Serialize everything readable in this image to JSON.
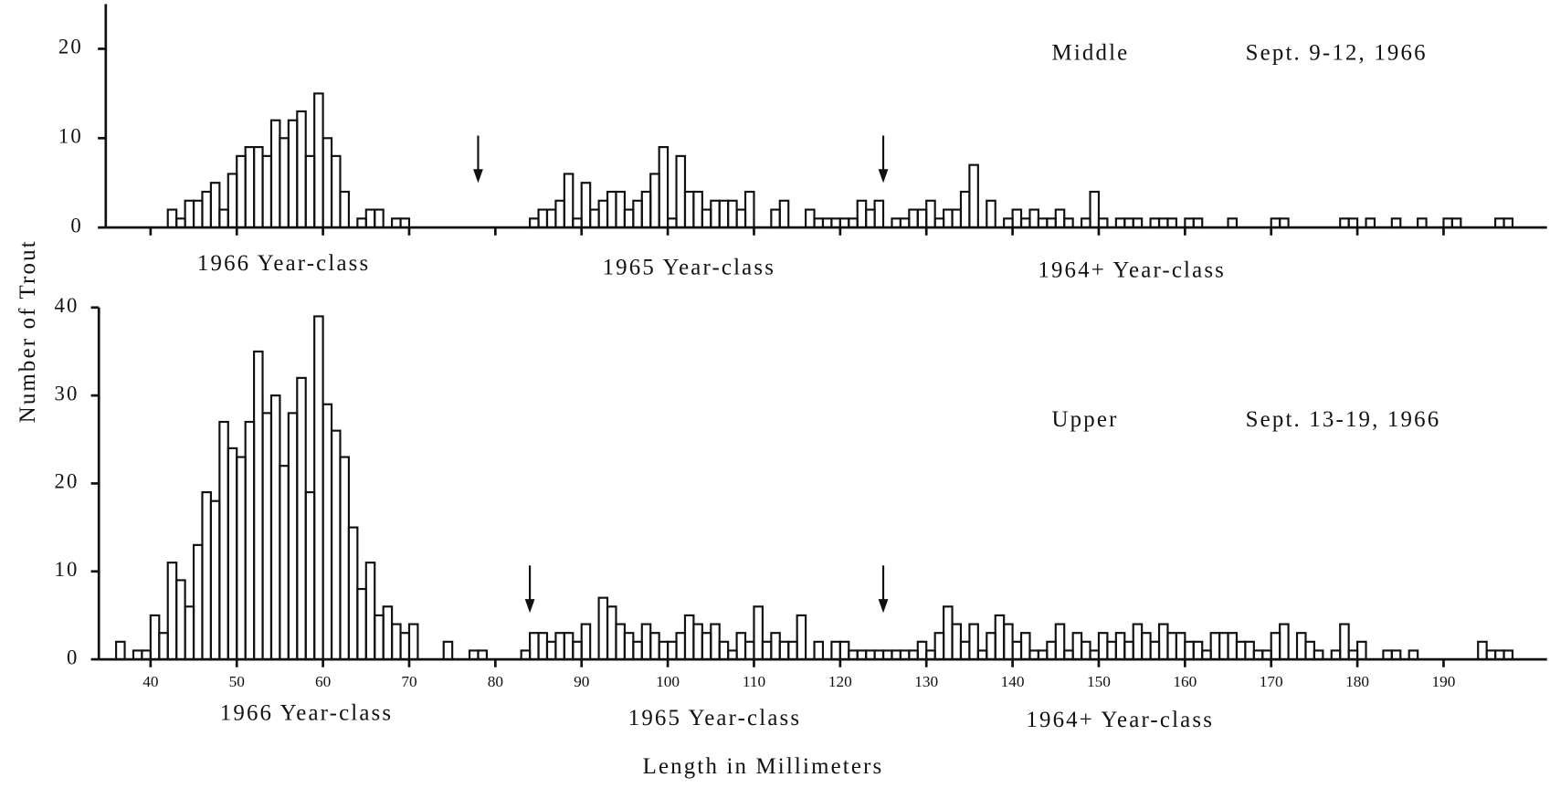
{
  "ylabel": "Number of Trout",
  "xlabel": "Length in Millimeters",
  "chart_data": [
    {
      "type": "histogram",
      "panel": "Middle",
      "date": "Sept. 9-12, 1966",
      "year_classes": [
        "1966 Year-class",
        "1965 Year-class",
        "1964+ Year-class"
      ],
      "arrows": [
        78,
        125
      ],
      "xlim": [
        34,
        202
      ],
      "ylim": [
        0,
        25
      ],
      "yticks": [
        0,
        10,
        20
      ],
      "bins": [
        35,
        36,
        37,
        38,
        39,
        40,
        41,
        42,
        43,
        44,
        45,
        46,
        47,
        48,
        49,
        50,
        51,
        52,
        53,
        54,
        55,
        56,
        57,
        58,
        59,
        60,
        61,
        62,
        63,
        64,
        65,
        66,
        67,
        68,
        69,
        70,
        71,
        72,
        73,
        74,
        75,
        76,
        77,
        78,
        79,
        80,
        81,
        82,
        83,
        84,
        85,
        86,
        87,
        88,
        89,
        90,
        91,
        92,
        93,
        94,
        95,
        96,
        97,
        98,
        99,
        100,
        101,
        102,
        103,
        104,
        105,
        106,
        107,
        108,
        109,
        110,
        111,
        112,
        113,
        114,
        115,
        116,
        117,
        118,
        119,
        120,
        121,
        122,
        123,
        124,
        125,
        126,
        127,
        128,
        129,
        130,
        131,
        132,
        133,
        134,
        135,
        136,
        137,
        138,
        139,
        140,
        141,
        142,
        143,
        144,
        145,
        146,
        147,
        148,
        149,
        150,
        151,
        152,
        153,
        154,
        155,
        156,
        157,
        158,
        159,
        160,
        161,
        162,
        163,
        164,
        165,
        166,
        167,
        168,
        169,
        170,
        171,
        172,
        173,
        174,
        175,
        176,
        177,
        178,
        179,
        180,
        181,
        182,
        183,
        184,
        185,
        186,
        187,
        188,
        189,
        190,
        191,
        192,
        193,
        194,
        195,
        196,
        197,
        198
      ],
      "values": [
        0,
        0,
        0,
        0,
        0,
        0,
        0,
        2,
        1,
        3,
        3,
        4,
        5,
        2,
        6,
        8,
        9,
        9,
        8,
        12,
        10,
        12,
        13,
        8,
        15,
        10,
        8,
        4,
        0,
        1,
        2,
        2,
        0,
        1,
        1,
        0,
        0,
        0,
        0,
        0,
        0,
        0,
        0,
        0,
        0,
        0,
        0,
        0,
        0,
        1,
        2,
        2,
        3,
        6,
        1,
        5,
        2,
        3,
        4,
        4,
        2,
        3,
        4,
        6,
        9,
        1,
        8,
        4,
        4,
        2,
        3,
        3,
        3,
        2,
        4,
        0,
        0,
        2,
        3,
        0,
        0,
        2,
        1,
        1,
        1,
        1,
        1,
        3,
        2,
        3,
        0,
        1,
        1,
        2,
        2,
        3,
        1,
        2,
        2,
        4,
        7,
        0,
        3,
        0,
        1,
        2,
        1,
        2,
        1,
        1,
        2,
        1,
        0,
        1,
        4,
        1,
        0,
        1,
        1,
        1,
        0,
        1,
        1,
        1,
        0,
        1,
        1,
        0,
        0,
        0,
        1,
        0,
        0,
        0,
        0,
        1,
        1,
        0,
        0,
        0,
        0,
        0,
        0,
        1,
        1,
        0,
        1,
        0,
        0,
        1,
        0,
        0,
        1,
        0,
        0,
        1,
        1,
        0,
        0,
        0,
        0,
        1,
        1
      ]
    },
    {
      "type": "histogram",
      "panel": "Upper",
      "date": "Sept. 13-19, 1966",
      "year_classes": [
        "1966 Year-class",
        "1965 Year-class",
        "1964+ Year-class"
      ],
      "arrows": [
        84,
        125
      ],
      "xlim": [
        34,
        202
      ],
      "xticks": [
        40,
        50,
        60,
        70,
        80,
        90,
        100,
        110,
        120,
        130,
        140,
        150,
        160,
        170,
        180,
        190
      ],
      "ylim": [
        0,
        40
      ],
      "yticks": [
        0,
        10,
        20,
        30,
        40
      ],
      "bins": [
        35,
        36,
        37,
        38,
        39,
        40,
        41,
        42,
        43,
        44,
        45,
        46,
        47,
        48,
        49,
        50,
        51,
        52,
        53,
        54,
        55,
        56,
        57,
        58,
        59,
        60,
        61,
        62,
        63,
        64,
        65,
        66,
        67,
        68,
        69,
        70,
        71,
        72,
        73,
        74,
        75,
        76,
        77,
        78,
        79,
        80,
        81,
        82,
        83,
        84,
        85,
        86,
        87,
        88,
        89,
        90,
        91,
        92,
        93,
        94,
        95,
        96,
        97,
        98,
        99,
        100,
        101,
        102,
        103,
        104,
        105,
        106,
        107,
        108,
        109,
        110,
        111,
        112,
        113,
        114,
        115,
        116,
        117,
        118,
        119,
        120,
        121,
        122,
        123,
        124,
        125,
        126,
        127,
        128,
        129,
        130,
        131,
        132,
        133,
        134,
        135,
        136,
        137,
        138,
        139,
        140,
        141,
        142,
        143,
        144,
        145,
        146,
        147,
        148,
        149,
        150,
        151,
        152,
        153,
        154,
        155,
        156,
        157,
        158,
        159,
        160,
        161,
        162,
        163,
        164,
        165,
        166,
        167,
        168,
        169,
        170,
        171,
        172,
        173,
        174,
        175,
        176,
        177,
        178,
        179,
        180,
        181,
        182,
        183,
        184,
        185,
        186,
        187,
        188,
        189,
        190,
        191,
        192,
        193,
        194,
        195,
        196,
        197,
        198
      ],
      "values": [
        0,
        2,
        0,
        1,
        1,
        5,
        3,
        11,
        9,
        6,
        13,
        19,
        18,
        27,
        24,
        23,
        27,
        35,
        28,
        30,
        22,
        28,
        32,
        19,
        39,
        29,
        26,
        23,
        15,
        8,
        11,
        5,
        6,
        4,
        3,
        4,
        0,
        0,
        0,
        2,
        0,
        0,
        1,
        1,
        0,
        0,
        0,
        0,
        1,
        3,
        3,
        2,
        3,
        3,
        2,
        4,
        0,
        7,
        6,
        4,
        3,
        2,
        4,
        3,
        2,
        2,
        3,
        5,
        4,
        3,
        4,
        2,
        1,
        3,
        2,
        6,
        2,
        3,
        2,
        2,
        5,
        0,
        2,
        0,
        2,
        2,
        1,
        1,
        1,
        1,
        1,
        1,
        1,
        1,
        2,
        1,
        3,
        6,
        4,
        2,
        4,
        1,
        3,
        5,
        4,
        2,
        3,
        1,
        1,
        2,
        4,
        1,
        3,
        2,
        1,
        3,
        2,
        3,
        2,
        4,
        3,
        2,
        4,
        3,
        3,
        2,
        2,
        1,
        3,
        3,
        3,
        2,
        2,
        1,
        1,
        3,
        4,
        0,
        3,
        2,
        1,
        0,
        1,
        4,
        1,
        2,
        0,
        0,
        1,
        1,
        0,
        1,
        0,
        0,
        0,
        0,
        0,
        0,
        0,
        2,
        1,
        1,
        1
      ]
    }
  ]
}
